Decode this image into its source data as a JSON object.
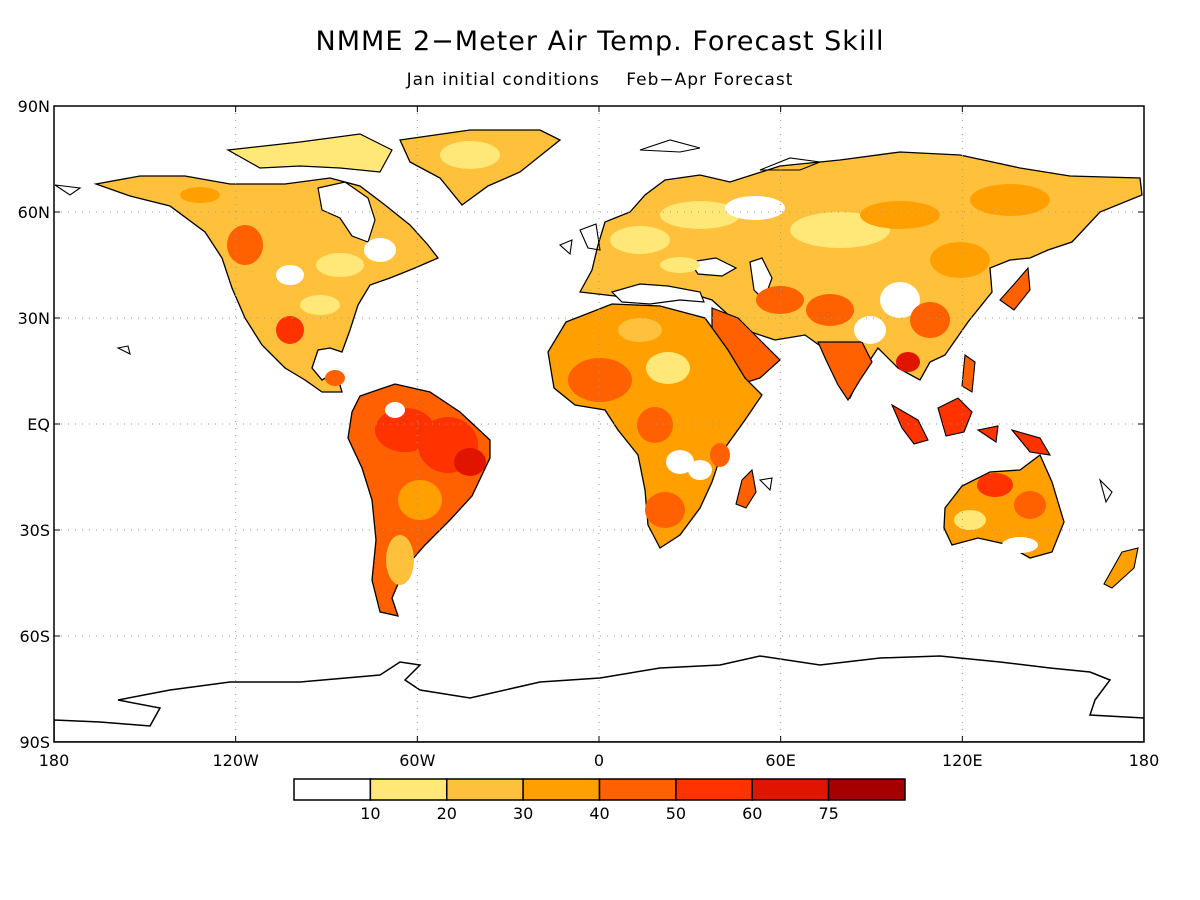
{
  "title": "NMME 2−Meter Air Temp. Forecast Skill",
  "subtitle": {
    "initial": "Jan initial conditions",
    "forecast": "Feb−Apr Forecast"
  },
  "map": {
    "lat_ticks": [
      "90N",
      "60N",
      "30N",
      "EQ",
      "30S",
      "60S",
      "90S"
    ],
    "lon_ticks": [
      "180",
      "120W",
      "60W",
      "0",
      "60E",
      "120E",
      "180"
    ],
    "colors": {
      "level_0": "#ffffff",
      "level_1": "#ffe878",
      "level_2": "#ffc03c",
      "level_3": "#ffa000",
      "level_4": "#ff6000",
      "level_5": "#ff3200",
      "level_6": "#e11400",
      "level_7": "#a50000"
    }
  },
  "legend": {
    "labels": [
      "10",
      "20",
      "30",
      "40",
      "50",
      "60",
      "75"
    ],
    "colors": [
      "#ffffff",
      "#ffe878",
      "#ffc03c",
      "#ffa000",
      "#ff6000",
      "#ff3200",
      "#e11400",
      "#a50000"
    ]
  }
}
